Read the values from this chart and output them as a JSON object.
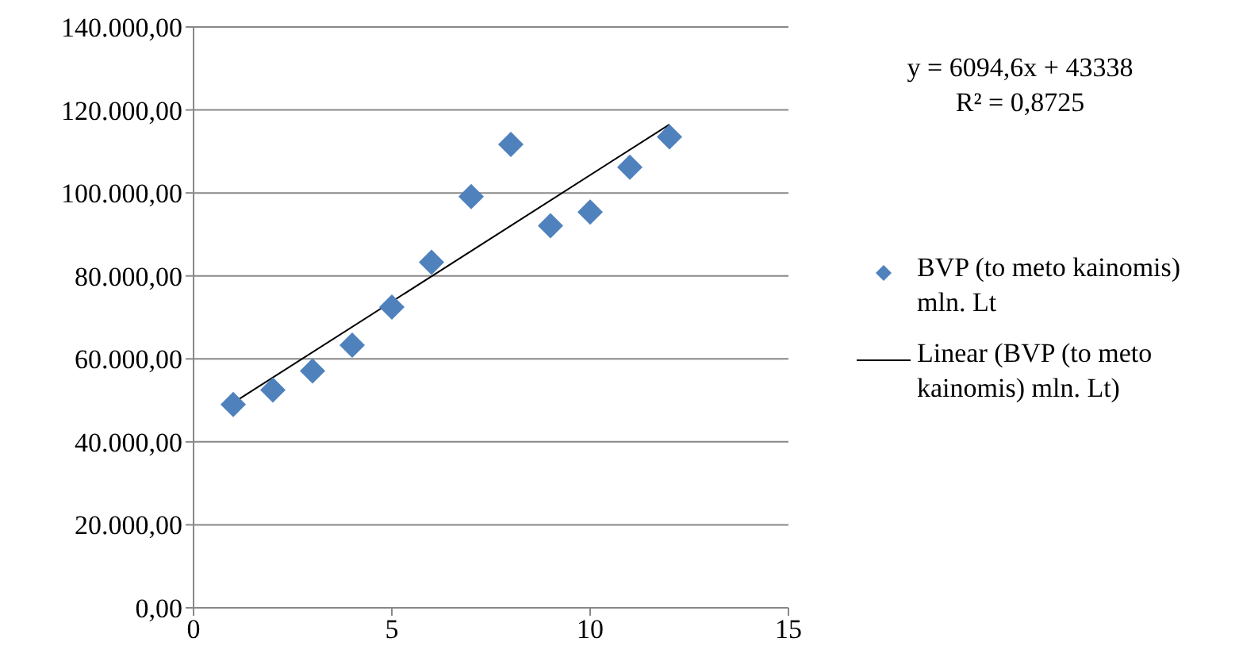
{
  "chart_data": {
    "type": "scatter",
    "grid": "y",
    "legend": "right",
    "xlim": [
      0,
      15
    ],
    "xticks": [
      0,
      5,
      10,
      15
    ],
    "ylim": [
      0,
      140000
    ],
    "yticks": [
      {
        "value": 0,
        "label": "0,00"
      },
      {
        "value": 20000,
        "label": "20.000,00"
      },
      {
        "value": 40000,
        "label": "40.000,00"
      },
      {
        "value": 60000,
        "label": "60.000,00"
      },
      {
        "value": 80000,
        "label": "80.000,00"
      },
      {
        "value": 100000,
        "label": "100.000,00"
      },
      {
        "value": 120000,
        "label": "120.000,00"
      },
      {
        "value": 140000,
        "label": "140.000,00"
      }
    ],
    "annotations": [
      "y = 6094,6x + 43338",
      "R² = 0,8725"
    ],
    "series": [
      {
        "name": "BVP (to meto kainomis) mln. Lt",
        "marker": "diamond",
        "color": "#4f81bd",
        "x": [
          1,
          2,
          3,
          4,
          5,
          6,
          7,
          8,
          9,
          10,
          11,
          12
        ],
        "values": [
          49000,
          52500,
          57100,
          63300,
          72500,
          83300,
          99100,
          111700,
          92100,
          95400,
          106200,
          113500
        ]
      },
      {
        "name": "Linear (BVP (to meto kainomis) mln. Lt)",
        "type": "line",
        "marker": "none",
        "line_style": "solid",
        "color": "#000000",
        "x": [
          1,
          12
        ],
        "values": [
          49400,
          116500
        ]
      }
    ]
  }
}
